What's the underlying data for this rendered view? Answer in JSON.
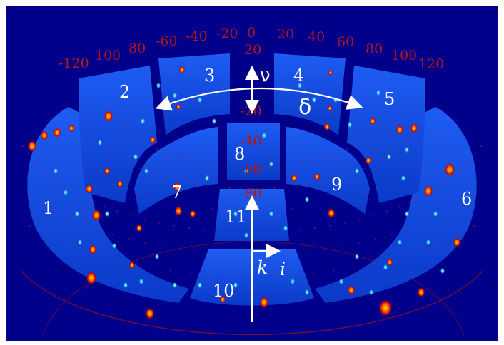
{
  "figure": {
    "background_color": "#00008b",
    "panel_color": "#1040d8",
    "gap_color": "#00003a",
    "scale_color": "#b01818",
    "spot_colors": [
      "#ffe000",
      "#ff6a00",
      "#c00000",
      "#39d0ff"
    ]
  },
  "scale_labels": [
    "-120",
    "100",
    "80",
    "-60",
    "-40",
    "-20",
    "0",
    "20",
    "40",
    "60",
    "80",
    "100",
    "120",
    "20",
    "-20",
    "-40",
    "-60",
    "-80"
  ],
  "panel_labels": [
    "1",
    "2",
    "3",
    "4",
    "5",
    "6",
    "7",
    "8",
    "9",
    "10",
    "11"
  ],
  "axis_labels": {
    "nu": "ν",
    "delta": "δ",
    "k": "k",
    "i": "i"
  }
}
